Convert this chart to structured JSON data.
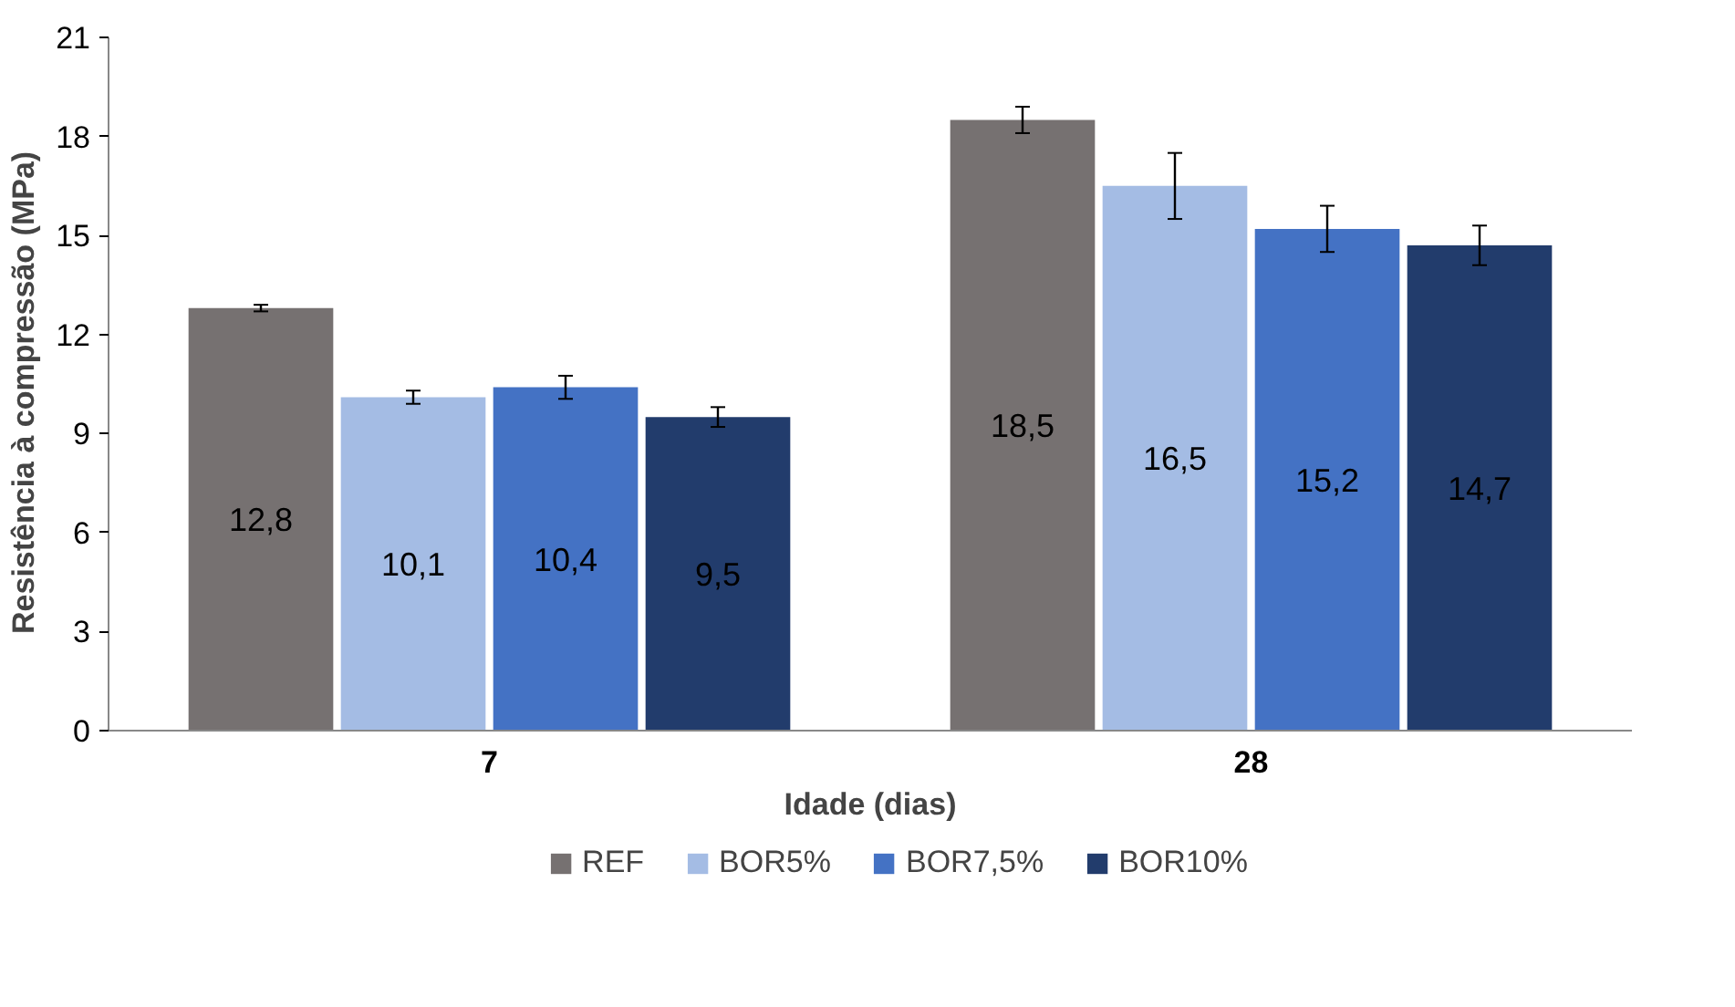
{
  "chart_data": {
    "type": "bar",
    "xlabel": "Idade (dias)",
    "ylabel": "Resistência  à compressão  (MPa)",
    "categories": [
      "7",
      "28"
    ],
    "series": [
      {
        "name": "REF",
        "color": "#767171",
        "values": [
          12.8,
          18.5
        ],
        "errors": [
          0.1,
          0.4
        ],
        "value_labels": [
          "12,8",
          "18,5"
        ]
      },
      {
        "name": "BOR5%",
        "color": "#a4bce4",
        "values": [
          10.1,
          16.5
        ],
        "errors": [
          0.2,
          1.0
        ],
        "value_labels": [
          "10,1",
          "16,5"
        ]
      },
      {
        "name": "BOR7,5%",
        "color": "#4472c4",
        "values": [
          10.4,
          15.2
        ],
        "errors": [
          0.35,
          0.7
        ],
        "value_labels": [
          "10,4",
          "15,2"
        ]
      },
      {
        "name": "BOR10%",
        "color": "#223c6c",
        "values": [
          9.5,
          14.7
        ],
        "errors": [
          0.3,
          0.6
        ],
        "value_labels": [
          "9,5",
          "14,7"
        ]
      }
    ],
    "ylim": [
      0,
      21
    ],
    "yticks": [
      0,
      3,
      6,
      9,
      12,
      15,
      18,
      21
    ],
    "grid": false,
    "legend": "bottom"
  }
}
